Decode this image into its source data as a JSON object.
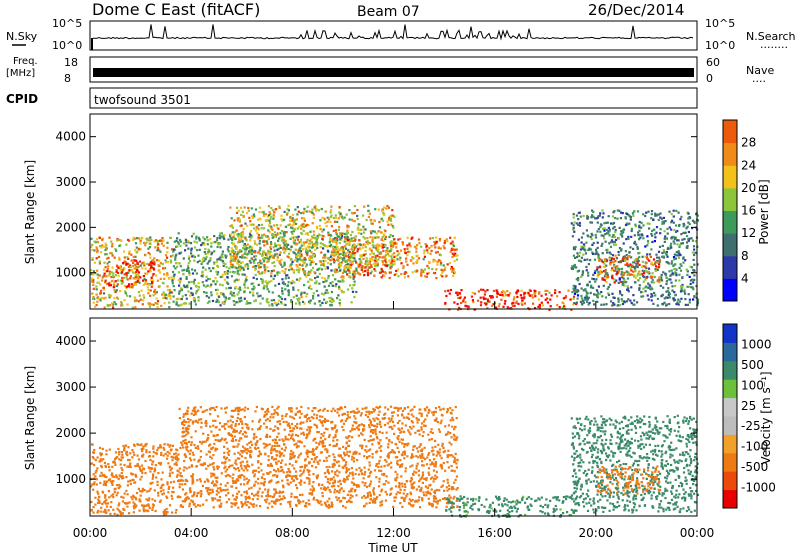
{
  "header": {
    "station": "Dome C East (fitACF)",
    "beam": "Beam 07",
    "date": "26/Dec/2014"
  },
  "panels": {
    "nsky": {
      "label": "N.Sky",
      "ticks_left": [
        "10^5",
        "10^0"
      ],
      "label_right": "N.Search",
      "ticks_right": [
        "10^5",
        "10^0"
      ],
      "dots": "........"
    },
    "freq": {
      "label_line1": "Freq.",
      "label_line2": "[MHz]",
      "ticks_left": [
        "18",
        "8"
      ],
      "label_right": "Nave",
      "ticks_right": [
        "60",
        "0"
      ],
      "dots": "...."
    },
    "cpid": {
      "label": "CPID",
      "value": "twofsound 3501"
    }
  },
  "colors": {
    "power": [
      "#0000ff",
      "#2b3aa8",
      "#3e6e6e",
      "#3c9a5a",
      "#8cc43a",
      "#f2c21a",
      "#f08a18",
      "#ee5a0c",
      "#e82a06",
      "#ff0000"
    ],
    "velocity": [
      "#1234c8",
      "#2a6a9a",
      "#3b8a6a",
      "#6cc03a",
      "#c8c8c8",
      "#bdbdbd",
      "#f2a02a",
      "#ee7a14",
      "#ec4a0a",
      "#e80000"
    ]
  },
  "chart_data": [
    {
      "type": "heatmap",
      "name": "power",
      "ylabel": "Slant Range [km]",
      "ylim": [
        200,
        4500
      ],
      "yticks": [
        "1000",
        "2000",
        "3000",
        "4000"
      ],
      "xlim": [
        "00:00",
        "24:00"
      ],
      "colorbar": {
        "label": "Power [dB]",
        "range": [
          0,
          32
        ],
        "ticks": [
          "4",
          "8",
          "12",
          "16",
          "20",
          "24",
          "28"
        ]
      },
      "regions": [
        {
          "t0": 0.0,
          "t1": 3.2,
          "r0": 250,
          "r1": 1800,
          "value": 18
        },
        {
          "t0": 0.5,
          "t1": 2.5,
          "r0": 700,
          "r1": 1300,
          "value": 26
        },
        {
          "t0": 3.2,
          "t1": 10.5,
          "r0": 300,
          "r1": 1900,
          "value": 12
        },
        {
          "t0": 5.5,
          "t1": 12.0,
          "r0": 1000,
          "r1": 2500,
          "value": 17
        },
        {
          "t0": 9.5,
          "t1": 14.5,
          "r0": 900,
          "r1": 1800,
          "value": 22
        },
        {
          "t0": 14.0,
          "t1": 19.2,
          "r0": 200,
          "r1": 650,
          "value": 27
        },
        {
          "t0": 19.0,
          "t1": 24.0,
          "r0": 300,
          "r1": 2400,
          "value": 9
        },
        {
          "t0": 20.0,
          "t1": 22.5,
          "r0": 800,
          "r1": 1400,
          "value": 22
        }
      ]
    },
    {
      "type": "heatmap",
      "name": "velocity",
      "ylabel": "Slant Range [km]",
      "ylim": [
        200,
        4500
      ],
      "yticks": [
        "1000",
        "2000",
        "3000",
        "4000"
      ],
      "xlim": [
        "00:00",
        "24:00"
      ],
      "xlabel": "Time UT",
      "xticks": [
        "00:00",
        "04:00",
        "08:00",
        "12:00",
        "16:00",
        "20:00",
        "00:00"
      ],
      "colorbar": {
        "label": "Velocity [m s⁻¹]",
        "ticks": [
          "1000",
          "500",
          "100",
          "25",
          "-25",
          "-100",
          "-500",
          "-1000"
        ]
      },
      "regions": [
        {
          "t0": 0.0,
          "t1": 3.5,
          "r0": 250,
          "r1": 1800,
          "value": -300
        },
        {
          "t0": 3.5,
          "t1": 14.5,
          "r0": 400,
          "r1": 2600,
          "value": -200
        },
        {
          "t0": 14.0,
          "t1": 19.2,
          "r0": 200,
          "r1": 650,
          "value": 150
        },
        {
          "t0": 19.0,
          "t1": 24.0,
          "r0": 300,
          "r1": 2400,
          "value": 300
        },
        {
          "t0": 20.0,
          "t1": 22.5,
          "r0": 700,
          "r1": 1300,
          "value": -250
        }
      ]
    }
  ]
}
